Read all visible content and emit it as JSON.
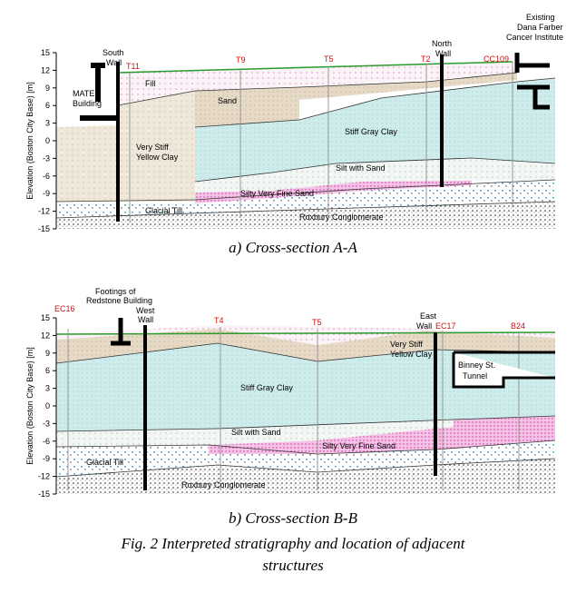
{
  "panels": [
    {
      "caption": "a) Cross-section A-A",
      "y_axis_label": "Elevation (Boston City Base) [m]",
      "ylim": [
        -15,
        15
      ],
      "yticks": [
        15,
        12,
        9,
        6,
        3,
        0,
        -3,
        -6,
        -9,
        -12,
        -15
      ],
      "labels": {
        "south_wall": [
          "South",
          "Wall"
        ],
        "t11": "T11",
        "t9": "T9",
        "t5": "T5",
        "t2": "T2",
        "north_wall": [
          "North",
          "Wall"
        ],
        "cc109": "CC109",
        "dana_farber": [
          "Existing",
          "Dana Farber",
          "Cancer Institute"
        ],
        "matep": [
          "MATEP",
          "Building"
        ],
        "fill": "Fill",
        "sand": "Sand",
        "stiff_gray_clay": "Stiff Gray Clay",
        "yellow_clay": [
          "Very Stiff",
          "Yellow Clay"
        ],
        "silt_with_sand": "Silt with Sand",
        "silty_sand": "Silty Very Fine Sand",
        "glacial_till": "Glacial Till",
        "roxbury": "Roxbury Conglomerate"
      }
    },
    {
      "caption": "b) Cross-section B-B",
      "y_axis_label": "Elevation (Boston City Base) [m]",
      "ylim": [
        -15,
        15
      ],
      "yticks": [
        15,
        12,
        9,
        6,
        3,
        0,
        -3,
        -6,
        -9,
        -12,
        -15
      ],
      "labels": {
        "ec16": "EC16",
        "footings": [
          "Footings of",
          "Redstone Building"
        ],
        "west_wall": [
          "West",
          "Wall"
        ],
        "t4": "T4",
        "t5": "T5",
        "east_wall": [
          "East",
          "Wall"
        ],
        "ec17": "EC17",
        "b24": "B24",
        "yellow_clay": [
          "Very Stiff",
          "Yellow Clay"
        ],
        "tunnel": [
          "Binney St.",
          "Tunnel"
        ],
        "stiff_gray_clay": "Stiff Gray Clay",
        "silt_with_sand": "Silt with Sand",
        "silty_sand": "Silty Very Fine Sand",
        "glacial_till": "Glacial Till",
        "roxbury": "Roxbury Conglomerate"
      }
    }
  ],
  "figure_caption": [
    "Fig. 2 Interpreted stratigraphy and location of adjacent",
    "structures"
  ]
}
